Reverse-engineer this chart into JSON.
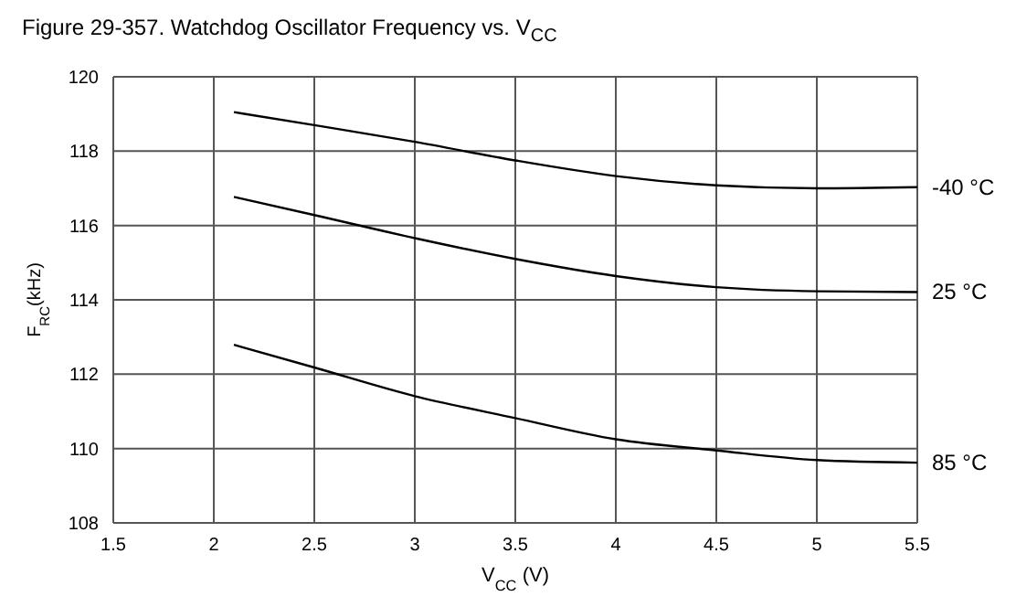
{
  "chart_data": {
    "type": "line",
    "title": "Figure 29-357. Watchdog Oscillator Frequency vs. V$_{CC}$",
    "xlabel": "V$_{CC}$ (V)",
    "ylabel": "F$_{RC}$(kHz)",
    "x": [
      2.1,
      2.5,
      3,
      3.5,
      4,
      4.5,
      5,
      5.5
    ],
    "series": [
      {
        "name": "-40 °C",
        "color": "#000000",
        "values": [
          119.05,
          118.7,
          118.25,
          117.75,
          117.33,
          117.08,
          117.0,
          117.03
        ]
      },
      {
        "name": "25 °C",
        "color": "#000000",
        "values": [
          116.77,
          116.28,
          115.66,
          115.1,
          114.64,
          114.34,
          114.23,
          114.21
        ]
      },
      {
        "name": "85 °C",
        "color": "#000000",
        "values": [
          112.79,
          112.18,
          111.41,
          110.82,
          110.25,
          109.95,
          109.69,
          109.62
        ]
      }
    ],
    "xlim": [
      1.5,
      5.5
    ],
    "xticks": [
      1.5,
      2,
      2.5,
      3,
      3.5,
      4,
      4.5,
      5,
      5.5
    ],
    "ylim": [
      108,
      120
    ],
    "yticks": [
      108,
      110,
      112,
      114,
      116,
      118,
      120
    ],
    "grid": true,
    "legend": false,
    "marker": "none",
    "line_style": "solid"
  }
}
